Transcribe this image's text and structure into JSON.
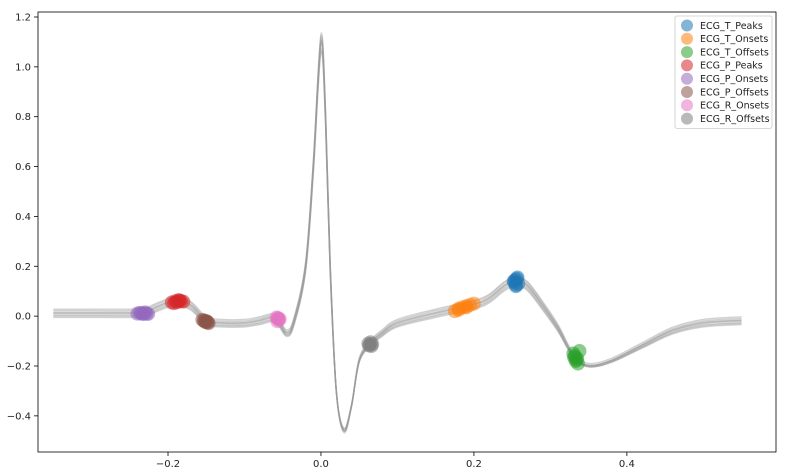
{
  "chart_data": {
    "type": "line",
    "title": "",
    "xlabel": "",
    "ylabel": "",
    "xlim": [
      -0.37,
      0.595
    ],
    "ylim": [
      -0.545,
      1.22
    ],
    "xticks": [
      -0.2,
      0.0,
      0.2,
      0.4
    ],
    "xtick_labels": [
      "−0.2",
      "0.0",
      "0.2",
      "0.4"
    ],
    "yticks": [
      -0.4,
      -0.2,
      0.0,
      0.2,
      0.4,
      0.6,
      0.8,
      1.0,
      1.2
    ],
    "ytick_labels": [
      "−0.4",
      "−0.2",
      "0.0",
      "0.2",
      "0.4",
      "0.6",
      "0.8",
      "1.0",
      "1.2"
    ],
    "grid": false,
    "legend_position": "top-right",
    "line_color": "#999999",
    "heartbeats": {
      "count": 8,
      "x": [
        -0.35,
        -0.3,
        -0.25,
        -0.23,
        -0.21,
        -0.19,
        -0.17,
        -0.15,
        -0.13,
        -0.1,
        -0.08,
        -0.06,
        -0.045,
        -0.035,
        -0.02,
        -0.01,
        0.0,
        0.006,
        0.012,
        0.02,
        0.03,
        0.04,
        0.05,
        0.065,
        0.08,
        0.1,
        0.15,
        0.2,
        0.22,
        0.24,
        0.255,
        0.27,
        0.29,
        0.31,
        0.33,
        0.35,
        0.38,
        0.42,
        0.46,
        0.5,
        0.55
      ],
      "y": [
        0.01,
        0.01,
        0.01,
        0.015,
        0.04,
        0.06,
        0.04,
        -0.02,
        -0.03,
        -0.03,
        -0.02,
        -0.01,
        -0.07,
        -0.02,
        0.2,
        0.6,
        1.1,
        0.8,
        0.2,
        -0.3,
        -0.46,
        -0.36,
        -0.18,
        -0.11,
        -0.07,
        -0.03,
        0.01,
        0.045,
        0.07,
        0.12,
        0.14,
        0.12,
        0.04,
        -0.05,
        -0.16,
        -0.2,
        -0.18,
        -0.12,
        -0.06,
        -0.03,
        -0.02
      ],
      "offsets": [
        0.0,
        0.012,
        -0.01,
        0.006,
        -0.006,
        0.018,
        -0.015,
        0.003
      ],
      "scales": [
        1.0,
        1.03,
        0.97,
        1.01,
        0.99,
        1.02,
        0.96,
        1.0
      ]
    },
    "series": [
      {
        "name": "ECG_T_Peaks",
        "color": "#1f77b4",
        "x": [
          0.252,
          0.254,
          0.256,
          0.255,
          0.257,
          0.253,
          0.258,
          0.255
        ],
        "y": [
          0.14,
          0.145,
          0.15,
          0.125,
          0.155,
          0.135,
          0.13,
          0.12
        ]
      },
      {
        "name": "ECG_T_Onsets",
        "color": "#ff7f0e",
        "x": [
          0.175,
          0.18,
          0.185,
          0.19,
          0.195,
          0.2,
          0.18,
          0.19
        ],
        "y": [
          0.02,
          0.03,
          0.035,
          0.04,
          0.045,
          0.05,
          0.025,
          0.035
        ]
      },
      {
        "name": "ECG_T_Offsets",
        "color": "#2ca02c",
        "x": [
          0.33,
          0.332,
          0.335,
          0.333,
          0.336,
          0.331,
          0.334,
          0.338
        ],
        "y": [
          -0.15,
          -0.16,
          -0.17,
          -0.18,
          -0.19,
          -0.165,
          -0.175,
          -0.14
        ]
      },
      {
        "name": "ECG_P_Peaks",
        "color": "#d62728",
        "x": [
          -0.195,
          -0.19,
          -0.185,
          -0.18,
          -0.188,
          -0.183,
          -0.192,
          -0.186
        ],
        "y": [
          0.055,
          0.06,
          0.062,
          0.058,
          0.056,
          0.06,
          0.052,
          0.064
        ]
      },
      {
        "name": "ECG_P_Onsets",
        "color": "#9467bd",
        "x": [
          -0.24,
          -0.235,
          -0.23,
          -0.228,
          -0.233,
          -0.237,
          -0.231,
          -0.226
        ],
        "y": [
          0.01,
          0.012,
          0.015,
          0.01,
          0.008,
          0.013,
          0.011,
          0.009
        ]
      },
      {
        "name": "ECG_P_Offsets",
        "color": "#8c564b",
        "x": [
          -0.155,
          -0.152,
          -0.148,
          -0.15,
          -0.147,
          -0.153,
          -0.149,
          -0.151
        ],
        "y": [
          -0.015,
          -0.02,
          -0.025,
          -0.02,
          -0.028,
          -0.018,
          -0.022,
          -0.024
        ]
      },
      {
        "name": "ECG_R_Onsets",
        "color": "#e377c2",
        "x": [
          -0.058,
          -0.056,
          -0.055,
          -0.057,
          -0.054,
          -0.056
        ],
        "y": [
          -0.005,
          -0.01,
          -0.015,
          -0.02,
          -0.012,
          -0.008
        ]
      },
      {
        "name": "ECG_R_Offsets",
        "color": "#7f7f7f",
        "x": [
          0.062,
          0.064,
          0.066,
          0.065,
          0.067,
          0.063
        ],
        "y": [
          -0.11,
          -0.115,
          -0.12,
          -0.105,
          -0.112,
          -0.118
        ]
      }
    ]
  }
}
